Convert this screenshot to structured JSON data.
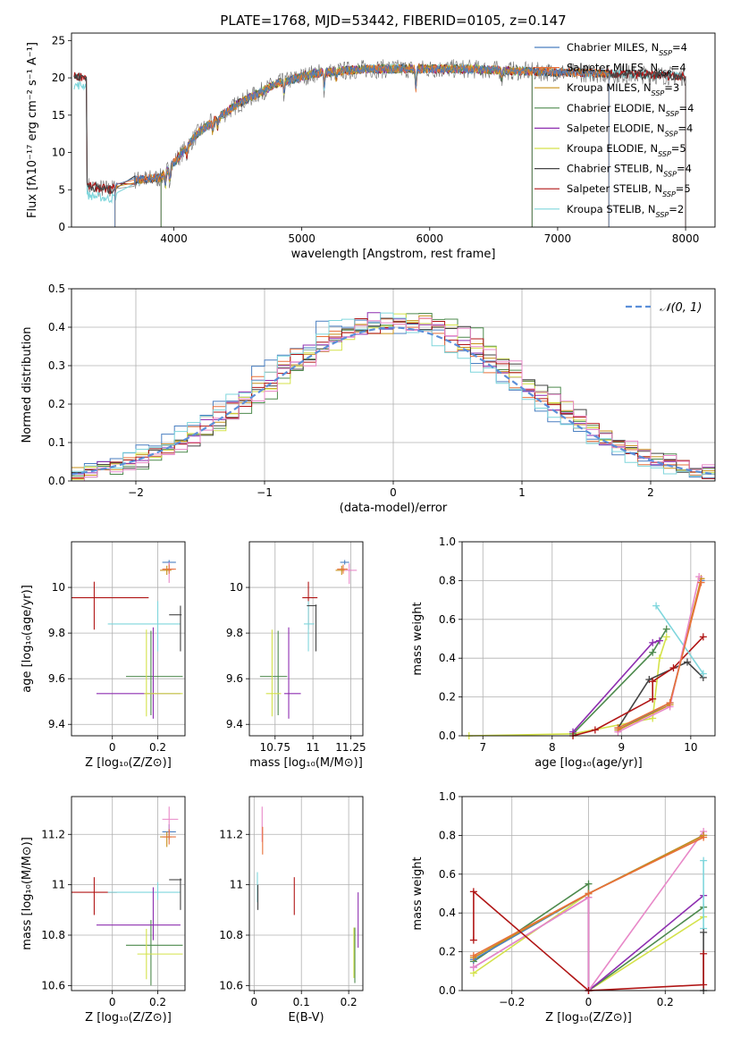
{
  "figure_title": "PLATE=1768, MJD=53442, FIBERID=0105, z=0.147",
  "colors": {
    "Chabrier MILES": "#4a7fc1",
    "Salpeter MILES": "#e8713a",
    "Kroupa MILES": "#c7901a",
    "Chabrier ELODIE": "#4d8a4d",
    "Salpeter ELODIE": "#8e2fb0",
    "Kroupa ELODIE": "#d4e24a",
    "Chabrier STELIB": "#444444",
    "Salpeter STELIB": "#b01515",
    "Kroupa STELIB": "#7fd6dc",
    "pink": "#e888c8",
    "normal": "#5b8fd9"
  },
  "chart_data": [
    {
      "id": "spectrum",
      "type": "line",
      "title": "PLATE=1768, MJD=53442, FIBERID=0105, z=0.147",
      "xlabel": "wavelength [Angstrom, rest frame]",
      "ylabel": "Flux [fλ10⁻¹⁷ erg cm⁻² s⁻¹ A⁻¹]",
      "xlim": [
        3200,
        8230
      ],
      "ylim": [
        0,
        26
      ],
      "xticks": [
        4000,
        5000,
        6000,
        7000,
        8000
      ],
      "yticks": [
        0,
        5,
        10,
        15,
        20,
        25
      ],
      "legend_position": "top-right",
      "legend": [
        {
          "label": "Chabrier MILES, N",
          "sub": "SSP",
          "tail": "=4",
          "color_key": "Chabrier MILES"
        },
        {
          "label": "Salpeter MILES, N",
          "sub": "SSP",
          "tail": "=4",
          "color_key": "Salpeter MILES"
        },
        {
          "label": "Kroupa MILES, N",
          "sub": "SSP",
          "tail": "=3",
          "color_key": "Kroupa MILES"
        },
        {
          "label": "Chabrier ELODIE, N",
          "sub": "SSP",
          "tail": "=4",
          "color_key": "Chabrier ELODIE"
        },
        {
          "label": "Salpeter ELODIE, N",
          "sub": "SSP",
          "tail": "=4",
          "color_key": "Salpeter ELODIE"
        },
        {
          "label": "Kroupa ELODIE, N",
          "sub": "SSP",
          "tail": "=5",
          "color_key": "Kroupa ELODIE"
        },
        {
          "label": "Chabrier STELIB, N",
          "sub": "SSP",
          "tail": "=4",
          "color_key": "Chabrier STELIB"
        },
        {
          "label": "Salpeter STELIB, N",
          "sub": "SSP",
          "tail": "=5",
          "color_key": "Salpeter STELIB"
        },
        {
          "label": "Kroupa STELIB, N",
          "sub": "SSP",
          "tail": "=2",
          "color_key": "Kroupa STELIB"
        }
      ],
      "continuum": {
        "x": [
          3320,
          3500,
          3700,
          3900,
          4000,
          4200,
          4500,
          4800,
          5100,
          5500,
          5900,
          6300,
          6700,
          7100,
          7500,
          7900,
          8000
        ],
        "y": [
          5.5,
          5.0,
          6.3,
          6.6,
          8.6,
          12.8,
          16.5,
          19.2,
          20.6,
          21.2,
          21.2,
          21.2,
          20.9,
          20.7,
          20.5,
          20.3,
          20.2
        ]
      },
      "model_ranges": {
        "Chabrier MILES": [
          3540,
          7400
        ],
        "Salpeter MILES": [
          3540,
          7400
        ],
        "Kroupa MILES": [
          3540,
          7400
        ],
        "Chabrier ELODIE": [
          3900,
          6800
        ],
        "Salpeter ELODIE": [
          3900,
          6800
        ],
        "Kroupa ELODIE": [
          3900,
          6800
        ],
        "Chabrier STELIB": [
          3220,
          8000
        ],
        "Salpeter STELIB": [
          3220,
          8000
        ],
        "Kroupa STELIB": [
          3220,
          8000
        ]
      }
    },
    {
      "id": "residuals",
      "type": "line",
      "xlabel": "(data-model)/error",
      "ylabel": "Normed distribution",
      "xlim": [
        -2.5,
        2.5
      ],
      "ylim": [
        0,
        0.5
      ],
      "xticks": [
        -2,
        -1,
        0,
        1,
        2
      ],
      "yticks": [
        0.0,
        0.1,
        0.2,
        0.3,
        0.4,
        0.5
      ],
      "grid": true,
      "legend_position": "top-right",
      "normal_label": "𝒩(0, 1)",
      "bin_width": 0.1
    },
    {
      "id": "age_vs_Z",
      "type": "scatter",
      "xlabel": "Z [log₁₀(Z/Z⊙)]",
      "ylabel": "age  [log₁₀(age/yr)]",
      "xlim": [
        -0.18,
        0.32
      ],
      "ylim": [
        9.35,
        10.2
      ],
      "xticks": [
        0.0,
        0.2
      ],
      "yticks": [
        9.4,
        9.6,
        9.8,
        10.0
      ],
      "grid": true,
      "points": [
        {
          "k": "Salpeter STELIB",
          "x": -0.08,
          "y": 9.955,
          "xe": [
            0.1,
            0.24
          ],
          "ye": [
            0.14,
            0.07
          ]
        },
        {
          "k": "Kroupa STELIB",
          "x": 0.2,
          "y": 9.84,
          "xe": [
            0.22,
            0.1
          ],
          "ye": [
            0.12,
            0.1
          ]
        },
        {
          "k": "Chabrier STELIB",
          "x": 0.3,
          "y": 9.88,
          "xe": [
            0.05,
            0.005
          ],
          "ye": [
            0.16,
            0.04
          ]
        },
        {
          "k": "Chabrier ELODIE",
          "x": 0.17,
          "y": 9.61,
          "xe": [
            0.11,
            0.14
          ],
          "ye": [
            0.17,
            0.2
          ]
        },
        {
          "k": "Salpeter ELODIE",
          "x": 0.18,
          "y": 9.535,
          "xe": [
            0.25,
            0.12
          ],
          "ye": [
            0.11,
            0.29
          ]
        },
        {
          "k": "Kroupa ELODIE",
          "x": 0.15,
          "y": 9.535,
          "xe": [
            0.01,
            0.16
          ],
          "ye": [
            0.1,
            0.28
          ]
        },
        {
          "k": "Chabrier MILES",
          "x": 0.25,
          "y": 10.11,
          "xe": [
            0.03,
            0.03
          ],
          "ye": [
            0.01,
            0.01
          ]
        },
        {
          "k": "pink",
          "x": 0.25,
          "y": 10.08,
          "xe": [
            0.03,
            0.02
          ],
          "ye": [
            0.06,
            0.03
          ]
        },
        {
          "k": "Kroupa MILES",
          "x": 0.24,
          "y": 10.075,
          "xe": [
            0.03,
            0.02
          ],
          "ye": [
            0.02,
            0.02
          ]
        },
        {
          "k": "Salpeter MILES",
          "x": 0.25,
          "y": 10.08,
          "xe": [
            0.03,
            0.03
          ],
          "ye": [
            0.02,
            0.02
          ]
        }
      ]
    },
    {
      "id": "age_vs_mass",
      "type": "scatter",
      "xlabel": "mass [log₁₀(M/M⊙)]",
      "ylabel": "",
      "xlim": [
        10.58,
        11.33
      ],
      "ylim": [
        9.35,
        10.2
      ],
      "xticks": [
        10.75,
        11.0,
        11.25
      ],
      "yticks": [
        9.4,
        9.6,
        9.8,
        10.0
      ],
      "grid": true,
      "points": [
        {
          "k": "Salpeter STELIB",
          "x": 10.97,
          "y": 9.955,
          "xe": [
            0.04,
            0.06
          ],
          "ye": [
            0.14,
            0.07
          ]
        },
        {
          "k": "Kroupa STELIB",
          "x": 10.97,
          "y": 9.84,
          "xe": [
            0.03,
            0.04
          ],
          "ye": [
            0.12,
            0.1
          ]
        },
        {
          "k": "Chabrier STELIB",
          "x": 11.02,
          "y": 9.92,
          "xe": [
            0.06,
            0.005
          ],
          "ye": [
            0.2,
            0.005
          ]
        },
        {
          "k": "Chabrier ELODIE",
          "x": 10.77,
          "y": 9.61,
          "xe": [
            0.12,
            0.06
          ],
          "ye": [
            0.17,
            0.2
          ]
        },
        {
          "k": "Salpeter ELODIE",
          "x": 10.84,
          "y": 9.535,
          "xe": [
            0.03,
            0.08
          ],
          "ye": [
            0.11,
            0.29
          ]
        },
        {
          "k": "Kroupa ELODIE",
          "x": 10.73,
          "y": 9.535,
          "xe": [
            0.04,
            0.06
          ],
          "ye": [
            0.1,
            0.28
          ]
        },
        {
          "k": "Chabrier MILES",
          "x": 11.21,
          "y": 10.11,
          "xe": [
            0.03,
            0.03
          ],
          "ye": [
            0.01,
            0.01
          ]
        },
        {
          "k": "pink",
          "x": 11.24,
          "y": 10.075,
          "xe": [
            0.03,
            0.05
          ],
          "ye": [
            0.06,
            0.03
          ]
        },
        {
          "k": "Kroupa MILES",
          "x": 11.19,
          "y": 10.075,
          "xe": [
            0.04,
            0.02
          ],
          "ye": [
            0.02,
            0.02
          ]
        },
        {
          "k": "Salpeter MILES",
          "x": 11.2,
          "y": 10.08,
          "xe": [
            0.04,
            0.03
          ],
          "ye": [
            0.02,
            0.02
          ]
        }
      ]
    },
    {
      "id": "weight_vs_age",
      "type": "line",
      "xlabel": "age  [log₁₀(age/yr)]",
      "ylabel": "mass weight",
      "xlim": [
        6.7,
        10.35
      ],
      "ylim": [
        0,
        1.0
      ],
      "xticks": [
        7,
        8,
        9,
        10
      ],
      "yticks": [
        0.0,
        0.2,
        0.4,
        0.6,
        0.8,
        1.0
      ],
      "grid": true,
      "series": [
        {
          "k": "Kroupa ELODIE",
          "x": [
            6.8,
            8.3,
            9.45,
            9.55,
            9.65
          ],
          "y": [
            0.0,
            0.01,
            0.09,
            0.4,
            0.51
          ]
        },
        {
          "k": "Chabrier ELODIE",
          "x": [
            8.3,
            9.45,
            9.65
          ],
          "y": [
            0.01,
            0.43,
            0.55
          ]
        },
        {
          "k": "Salpeter ELODIE",
          "x": [
            8.3,
            9.45,
            9.55
          ],
          "y": [
            0.02,
            0.48,
            0.49
          ]
        },
        {
          "k": "Chabrier STELIB",
          "x": [
            8.95,
            9.4,
            9.95,
            10.18
          ],
          "y": [
            0.04,
            0.29,
            0.38,
            0.3
          ]
        },
        {
          "k": "Salpeter STELIB",
          "x": [
            8.3,
            8.62,
            9.45,
            9.45,
            9.75,
            10.18
          ],
          "y": [
            0.0,
            0.03,
            0.19,
            0.28,
            0.35,
            0.51
          ]
        },
        {
          "k": "Kroupa STELIB",
          "x": [
            9.5,
            10.18
          ],
          "y": [
            0.67,
            0.32
          ]
        },
        {
          "k": "Chabrier MILES",
          "x": [
            8.95,
            9.7,
            10.15
          ],
          "y": [
            0.03,
            0.17,
            0.8
          ]
        },
        {
          "k": "Kroupa MILES",
          "x": [
            8.95,
            9.7,
            10.15
          ],
          "y": [
            0.03,
            0.16,
            0.81
          ]
        },
        {
          "k": "pink",
          "x": [
            8.95,
            9.7,
            10.12
          ],
          "y": [
            0.02,
            0.15,
            0.82
          ]
        },
        {
          "k": "Salpeter MILES",
          "x": [
            8.95,
            9.7,
            10.15
          ],
          "y": [
            0.04,
            0.17,
            0.79
          ]
        }
      ]
    },
    {
      "id": "mass_vs_Z",
      "type": "scatter",
      "xlabel": "Z [log₁₀(Z/Z⊙)]",
      "ylabel": "mass [log₁₀(M/M⊙)]",
      "xlim": [
        -0.18,
        0.32
      ],
      "ylim": [
        10.58,
        11.35
      ],
      "xticks": [
        0.0,
        0.2
      ],
      "yticks": [
        10.6,
        10.8,
        11.0,
        11.2
      ],
      "grid": true,
      "points": [
        {
          "k": "Salpeter STELIB",
          "x": -0.08,
          "y": 10.97,
          "xe": [
            0.1,
            0.1
          ],
          "ye": [
            0.09,
            0.06
          ]
        },
        {
          "k": "Kroupa STELIB",
          "x": 0.2,
          "y": 10.97,
          "xe": [
            0.22,
            0.1
          ],
          "ye": [
            0.03,
            0.04
          ]
        },
        {
          "k": "Chabrier STELIB",
          "x": 0.3,
          "y": 11.02,
          "xe": [
            0.05,
            0.005
          ],
          "ye": [
            0.12,
            0.005
          ]
        },
        {
          "k": "Chabrier ELODIE",
          "x": 0.17,
          "y": 10.76,
          "xe": [
            0.11,
            0.14
          ],
          "ye": [
            0.16,
            0.1
          ]
        },
        {
          "k": "Salpeter ELODIE",
          "x": 0.18,
          "y": 10.84,
          "xe": [
            0.25,
            0.12
          ],
          "ye": [
            0.06,
            0.15
          ]
        },
        {
          "k": "Kroupa ELODIE",
          "x": 0.15,
          "y": 10.725,
          "xe": [
            0.04,
            0.16
          ],
          "ye": [
            0.1,
            0.1
          ]
        },
        {
          "k": "Chabrier MILES",
          "x": 0.25,
          "y": 11.21,
          "xe": [
            0.03,
            0.03
          ],
          "ye": [
            0.03,
            0.03
          ]
        },
        {
          "k": "pink",
          "x": 0.25,
          "y": 11.26,
          "xe": [
            0.03,
            0.04
          ],
          "ye": [
            0.06,
            0.05
          ]
        },
        {
          "k": "Kroupa MILES",
          "x": 0.24,
          "y": 11.19,
          "xe": [
            0.03,
            0.02
          ],
          "ye": [
            0.04,
            0.02
          ]
        },
        {
          "k": "Salpeter MILES",
          "x": 0.25,
          "y": 11.19,
          "xe": [
            0.03,
            0.03
          ],
          "ye": [
            0.03,
            0.03
          ]
        }
      ]
    },
    {
      "id": "mass_vs_EBV",
      "type": "scatter",
      "xlabel": "E(B-V)",
      "ylabel": "",
      "xlim": [
        -0.01,
        0.23
      ],
      "ylim": [
        10.58,
        11.35
      ],
      "xticks": [
        0.0,
        0.1,
        0.2
      ],
      "yticks": [
        10.6,
        10.8,
        11.0,
        11.2
      ],
      "grid": true,
      "points": [
        {
          "k": "Kroupa STELIB",
          "x": 0.007,
          "y": 10.99,
          "xe": [
            0,
            0
          ],
          "ye": [
            0.06,
            0.06
          ]
        },
        {
          "k": "Chabrier STELIB",
          "x": 0.008,
          "y": 10.97,
          "xe": [
            0,
            0
          ],
          "ye": [
            0.07,
            0.03
          ]
        },
        {
          "k": "pink",
          "x": 0.017,
          "y": 11.23,
          "xe": [
            0,
            0
          ],
          "ye": [
            0.06,
            0.08
          ]
        },
        {
          "k": "Salpeter MILES",
          "x": 0.018,
          "y": 11.19,
          "xe": [
            0,
            0
          ],
          "ye": [
            0.07,
            0.04
          ]
        },
        {
          "k": "Salpeter STELIB",
          "x": 0.085,
          "y": 10.97,
          "xe": [
            0,
            0
          ],
          "ye": [
            0.09,
            0.06
          ]
        },
        {
          "k": "Chabrier ELODIE",
          "x": 0.213,
          "y": 10.73,
          "xe": [
            0,
            0
          ],
          "ye": [
            0.12,
            0.1
          ]
        },
        {
          "k": "Kroupa ELODIE",
          "x": 0.211,
          "y": 10.73,
          "xe": [
            0,
            0
          ],
          "ye": [
            0.1,
            0.1
          ]
        },
        {
          "k": "Salpeter ELODIE",
          "x": 0.22,
          "y": 10.86,
          "xe": [
            0,
            0
          ],
          "ye": [
            0.11,
            0.11
          ]
        }
      ]
    },
    {
      "id": "weight_vs_Z",
      "type": "line",
      "xlabel": "Z [log₁₀(Z/Z⊙)]",
      "ylabel": "mass weight",
      "xlim": [
        -0.33,
        0.33
      ],
      "ylim": [
        0,
        1.0
      ],
      "xticks": [
        -0.2,
        0.0,
        0.2
      ],
      "yticks": [
        0.0,
        0.2,
        0.4,
        0.6,
        0.8,
        1.0
      ],
      "grid": true,
      "series": [
        {
          "k": "Kroupa ELODIE",
          "x": [
            -0.3,
            0.0,
            0.0,
            0.3
          ],
          "y": [
            0.09,
            0.5,
            0.0,
            0.38
          ]
        },
        {
          "k": "Chabrier ELODIE",
          "x": [
            -0.3,
            0.0,
            0.0,
            0.3
          ],
          "y": [
            0.15,
            0.55,
            0.0,
            0.43
          ]
        },
        {
          "k": "Salpeter ELODIE",
          "x": [
            -0.3,
            0.0,
            0.0,
            0.3
          ],
          "y": [
            0.12,
            0.48,
            0.0,
            0.49
          ]
        },
        {
          "k": "pink",
          "x": [
            -0.3,
            0.0,
            0.0,
            0.3
          ],
          "y": [
            0.12,
            0.48,
            0.0,
            0.82
          ]
        },
        {
          "k": "Chabrier MILES",
          "x": [
            -0.3,
            0.0,
            0.3
          ],
          "y": [
            0.16,
            0.5,
            0.8
          ]
        },
        {
          "k": "Kroupa MILES",
          "x": [
            -0.3,
            0.0,
            0.3
          ],
          "y": [
            0.17,
            0.5,
            0.8
          ]
        },
        {
          "k": "Salpeter MILES",
          "x": [
            -0.3,
            0.0,
            0.3
          ],
          "y": [
            0.18,
            0.5,
            0.79
          ]
        },
        {
          "k": "Kroupa STELIB",
          "x": [
            0.3,
            0.3
          ],
          "y": [
            0.32,
            0.67
          ]
        },
        {
          "k": "Chabrier STELIB",
          "x": [
            0.3,
            0.3
          ],
          "y": [
            0.0,
            0.3
          ]
        },
        {
          "k": "Salpeter STELIB",
          "x": [
            -0.3,
            -0.3,
            0.0,
            0.3,
            0.3
          ],
          "y": [
            0.26,
            0.51,
            0.0,
            0.03,
            0.19
          ]
        }
      ]
    }
  ]
}
